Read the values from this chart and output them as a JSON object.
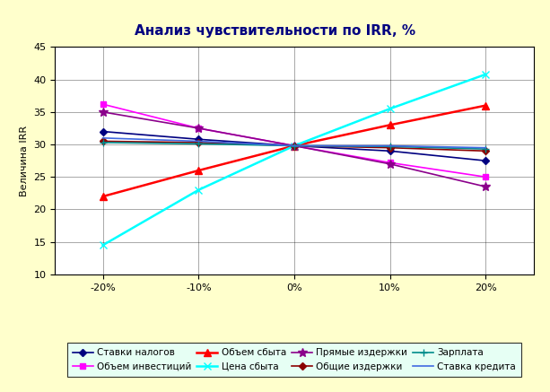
{
  "title": "Анализ чувствительности по IRR, %",
  "ylabel": "Величина IRR",
  "x_values": [
    -20,
    -10,
    0,
    10,
    20
  ],
  "x_labels": [
    "-20%",
    "-10%",
    "0%",
    "10%",
    "20%"
  ],
  "ylim": [
    10,
    45
  ],
  "yticks": [
    10,
    15,
    20,
    25,
    30,
    35,
    40,
    45
  ],
  "series": [
    {
      "name": "Ставки налогов",
      "values": [
        32.0,
        30.8,
        29.8,
        29.0,
        27.5
      ],
      "color": "#000080",
      "marker": "D",
      "markersize": 4,
      "linewidth": 1.2
    },
    {
      "name": "Объем инвестиций",
      "values": [
        36.2,
        32.5,
        29.8,
        27.2,
        25.0
      ],
      "color": "#FF00FF",
      "marker": "s",
      "markersize": 5,
      "linewidth": 1.2
    },
    {
      "name": "Объем сбыта",
      "values": [
        22.0,
        26.0,
        29.8,
        33.0,
        36.0
      ],
      "color": "#FF0000",
      "marker": "^",
      "markersize": 6,
      "linewidth": 1.8
    },
    {
      "name": "Цена сбыта",
      "values": [
        14.5,
        23.0,
        29.8,
        35.5,
        40.8
      ],
      "color": "#00FFFF",
      "marker": "x",
      "markersize": 6,
      "linewidth": 1.8
    },
    {
      "name": "Прямые издержки",
      "values": [
        35.0,
        32.5,
        29.8,
        27.0,
        23.5
      ],
      "color": "#8B008B",
      "marker": "*",
      "markersize": 7,
      "linewidth": 1.2
    },
    {
      "name": "Общие издержки",
      "values": [
        30.5,
        30.3,
        29.8,
        29.5,
        29.0
      ],
      "color": "#8B0000",
      "marker": "D",
      "markersize": 4,
      "linewidth": 1.2
    },
    {
      "name": "Зарплата",
      "values": [
        30.3,
        30.1,
        29.8,
        29.7,
        29.3
      ],
      "color": "#008B8B",
      "marker": "+",
      "markersize": 6,
      "linewidth": 1.2
    },
    {
      "name": "Ставка кредита",
      "values": [
        31.0,
        30.5,
        29.8,
        29.8,
        29.5
      ],
      "color": "#4169E1",
      "marker": "None",
      "markersize": 4,
      "linewidth": 1.2
    }
  ],
  "bg_color_outer": "#FFFFCC",
  "bg_color_plot": "#FFFFFF",
  "legend_bg": "#E0FFFF",
  "title_fontsize": 11,
  "axis_label_fontsize": 8,
  "tick_fontsize": 8,
  "legend_fontsize": 7.5
}
